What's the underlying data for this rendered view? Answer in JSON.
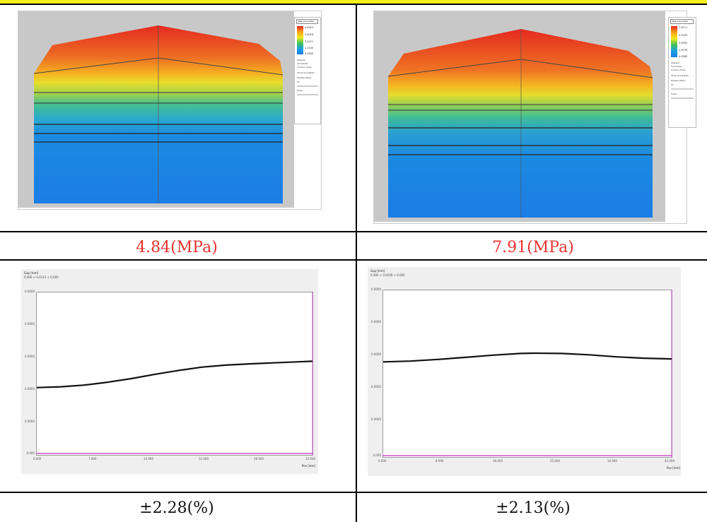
{
  "top_left": {
    "panel_header": "Pressure  [MPa]",
    "legend": {
      "dropdown": "Step Line Scale",
      "values": [
        "4.8423",
        "3.6316",
        "2.4211",
        "1.2105",
        "0.0000"
      ],
      "options": [
        "Shadow",
        "Smoothed",
        "Contour Lines"
      ],
      "show_annotation": "Show annotation",
      "display_plane_label": "Display Plane",
      "display_plane_value": "XY",
      "scale_label": "Scale"
    }
  },
  "top_right": {
    "panel_header": "Pressure  [MPa]",
    "legend": {
      "dropdown": "Step Line Scale",
      "values": [
        "7.9111",
        "5.9333",
        "3.9555",
        "1.9778",
        "0.0000"
      ],
      "options": [
        "Shadow",
        "Smoothed",
        "Contour Lines"
      ],
      "show_annotation": "Show annotation",
      "display_plane_label": "Display Plane",
      "display_plane_value": "XY",
      "scale_label": "Scale"
    }
  },
  "captions": {
    "pressure_left": "4.84(MPa)",
    "pressure_right": "7.91(MPa)",
    "tolerance_left": "±2.28(%)",
    "tolerance_right": "±2.13(%)"
  },
  "chart_data": [
    {
      "type": "line",
      "title": "Gap [mm]",
      "subtitle": "0.000 < 0.0113 < 0.000",
      "xlabel": "Pos [mm]",
      "x_ticks": [
        "0.000",
        "7.000",
        "14.000",
        "21.000",
        "28.000",
        "35.000"
      ],
      "y_ticks": [
        "0.000",
        "0.0000",
        "0.0000",
        "0.0000",
        "0.0000",
        "0.0000"
      ],
      "xlim": [
        0,
        35
      ],
      "ylim": [
        0,
        1
      ],
      "series": [
        {
          "x": [
            0,
            3,
            6,
            9,
            12,
            15,
            18,
            21,
            24,
            27,
            30,
            33,
            35
          ],
          "values": [
            0.415,
            0.42,
            0.43,
            0.448,
            0.47,
            0.496,
            0.52,
            0.54,
            0.552,
            0.56,
            0.566,
            0.572,
            0.576
          ],
          "color": "#111111"
        }
      ],
      "baseline_color": "#cc55cc"
    },
    {
      "type": "line",
      "title": "Gap [mm]",
      "subtitle": "0.000 < 0.0100 < 0.000",
      "xlabel": "Pos [mm]",
      "x_ticks": [
        "0.000",
        "8.000",
        "16.000",
        "25.000",
        "34.000",
        "42.000"
      ],
      "y_ticks": [
        "0.000",
        "0.0000",
        "0.0000",
        "0.0000",
        "0.0000",
        "0.0000"
      ],
      "xlim": [
        0,
        42
      ],
      "ylim": [
        0,
        1
      ],
      "series": [
        {
          "x": [
            0,
            4,
            8,
            12,
            16,
            20,
            22,
            26,
            30,
            34,
            38,
            42
          ],
          "values": [
            0.57,
            0.575,
            0.585,
            0.597,
            0.61,
            0.62,
            0.622,
            0.62,
            0.612,
            0.6,
            0.592,
            0.588
          ],
          "color": "#111111"
        }
      ],
      "baseline_color": "#cc55cc"
    }
  ]
}
